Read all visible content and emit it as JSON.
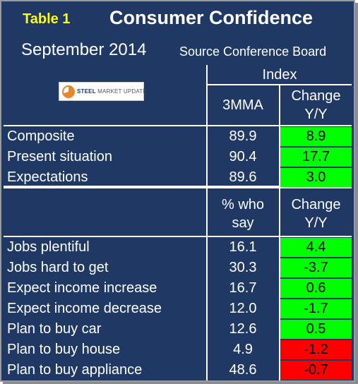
{
  "header": {
    "table_label": "Table 1",
    "title": "Consumer Confidence",
    "date": "September 2014",
    "source": "Source Conference Board"
  },
  "logo": {
    "text_bold": "STEEL",
    "text_light": "MARKET UPDATE"
  },
  "index_header": "Index",
  "columns": {
    "value_1": "3MMA",
    "change_1": [
      "Change",
      "Y/Y"
    ],
    "value_2": [
      "% who",
      "say"
    ],
    "change_2": [
      "Change",
      "Y/Y"
    ]
  },
  "colors": {
    "background": "#1f3864",
    "positive": "#00ff00",
    "negative": "#ff0000"
  },
  "index_rows": [
    {
      "label": "Composite",
      "value": "89.9",
      "change": "8.9",
      "status": "positive"
    },
    {
      "label": "Present situation",
      "value": "90.4",
      "change": "17.7",
      "status": "positive"
    },
    {
      "label": "Expectations",
      "value": "89.6",
      "change": "3.0",
      "status": "positive"
    }
  ],
  "survey_rows": [
    {
      "label": "Jobs plentiful",
      "value": "16.1",
      "change": "4.4",
      "status": "positive"
    },
    {
      "label": "Jobs hard to get",
      "value": "30.3",
      "change": "-3.7",
      "status": "positive"
    },
    {
      "label": "Expect income increase",
      "value": "16.7",
      "change": "0.6",
      "status": "positive"
    },
    {
      "label": "Expect income decrease",
      "value": "12.0",
      "change": "-1.7",
      "status": "positive"
    },
    {
      "label": "Plan to buy car",
      "value": "12.6",
      "change": "0.5",
      "status": "positive"
    },
    {
      "label": "Plan to buy house",
      "value": "4.9",
      "change": "-1.2",
      "status": "negative"
    },
    {
      "label": "Plan to buy appliance",
      "value": "48.6",
      "change": "-0.7",
      "status": "negative"
    }
  ]
}
